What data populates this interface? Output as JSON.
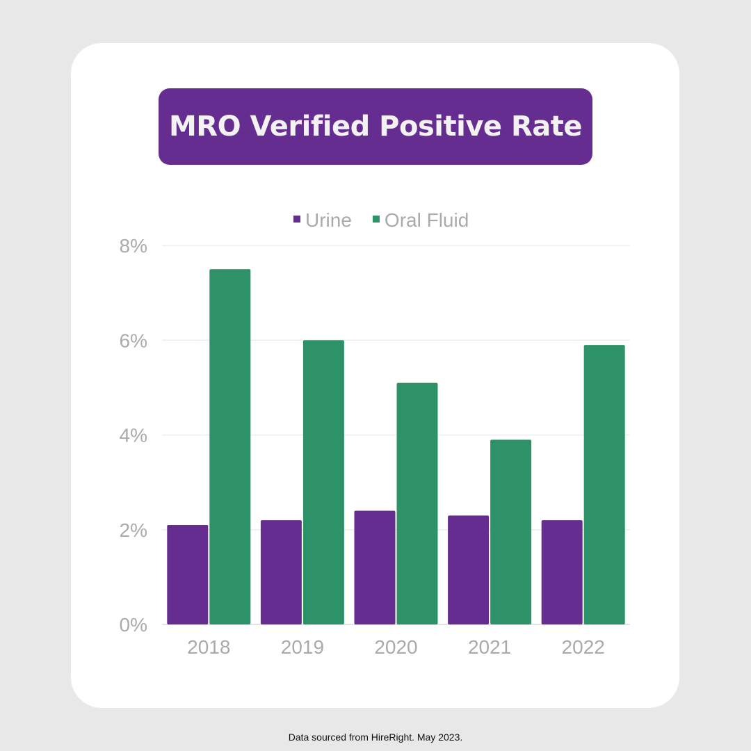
{
  "chart_data": {
    "type": "bar",
    "title": "MRO Verified Positive Rate",
    "categories": [
      "2018",
      "2019",
      "2020",
      "2021",
      "2022"
    ],
    "series": [
      {
        "name": "Urine",
        "color": "#662d91",
        "values": [
          2.1,
          2.2,
          2.4,
          2.3,
          2.2
        ]
      },
      {
        "name": "Oral Fluid",
        "color": "#2e9268",
        "values": [
          7.5,
          6.0,
          5.1,
          3.9,
          5.9
        ]
      }
    ],
    "ylim": [
      0,
      8
    ],
    "yticks": [
      0,
      2,
      4,
      6,
      8
    ],
    "ytick_labels": [
      "0%",
      "2%",
      "4%",
      "6%",
      "8%"
    ],
    "grid": true,
    "legend_position": "top"
  },
  "footer": "Data sourced from HireRight. May 2023."
}
